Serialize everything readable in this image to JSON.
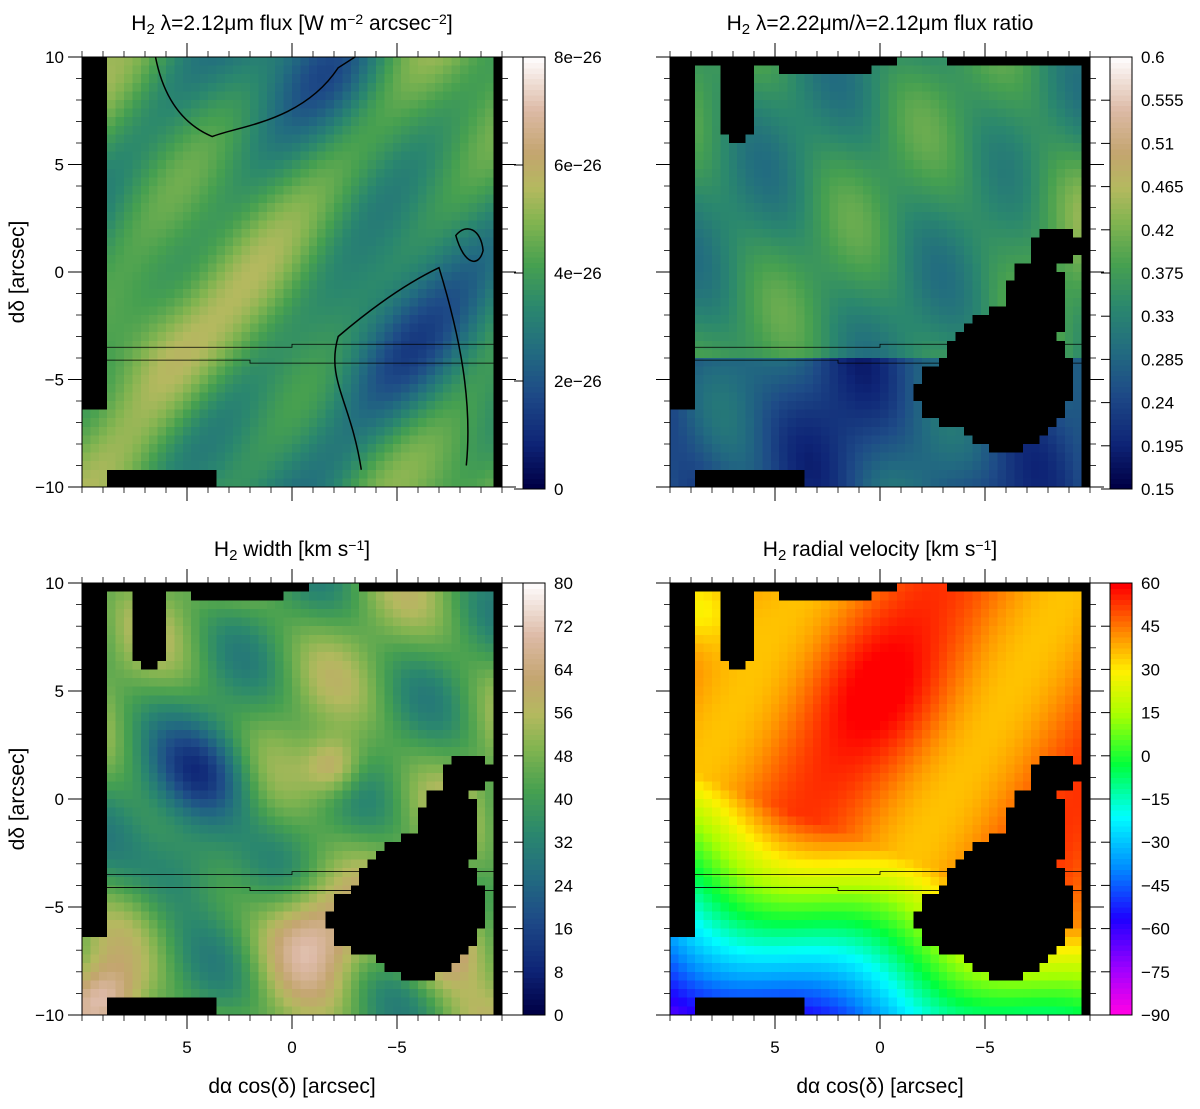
{
  "figure": {
    "xlabel_prefix": "dα cos(δ)",
    "xlabel_unit": "[arcsec]",
    "ylabel_prefix": "dδ",
    "ylabel_unit": "[arcsec]"
  },
  "chart_data": [
    {
      "type": "heatmap",
      "title_parts": [
        [
          "H",
          ""
        ],
        [
          "2",
          "sub"
        ],
        [
          " λ=2.12μm flux [W m",
          ""
        ],
        [
          "−2",
          "sup"
        ],
        [
          " arcsec",
          ""
        ],
        [
          "−2",
          "sup"
        ],
        [
          "]",
          ""
        ]
      ],
      "xlim": [
        10,
        -10
      ],
      "ylim": [
        -10,
        10
      ],
      "x_ticks": [
        5,
        0,
        -5
      ],
      "x_tick_labels": [
        "5",
        "0",
        "−5"
      ],
      "y_ticks": [
        10,
        5,
        0,
        -5,
        -10
      ],
      "y_tick_labels": [
        "10",
        "5",
        "0",
        "−5",
        "−10"
      ],
      "show_x_tick_labels": false,
      "show_y_tick_labels": true,
      "colorbar": {
        "min": 0,
        "max": 8e-26,
        "ticks": [
          0,
          2e-26,
          4e-26,
          6e-26,
          8e-26
        ],
        "tick_labels": [
          "0",
          "2e−26",
          "4e−26",
          "6e−26",
          "8e−26"
        ]
      },
      "colormap": "gist_earth_like",
      "masked_color": "#000000",
      "contours": true
    },
    {
      "type": "heatmap",
      "title_parts": [
        [
          "H",
          ""
        ],
        [
          "2",
          "sub"
        ],
        [
          " λ=2.22μm/λ=2.12μm flux ratio",
          ""
        ]
      ],
      "xlim": [
        10,
        -10
      ],
      "ylim": [
        -10,
        10
      ],
      "x_ticks": [
        5,
        0,
        -5
      ],
      "x_tick_labels": [
        "5",
        "0",
        "−5"
      ],
      "y_ticks": [
        10,
        5,
        0,
        -5,
        -10
      ],
      "y_tick_labels": [
        "10",
        "5",
        "0",
        "−5",
        "−10"
      ],
      "show_x_tick_labels": false,
      "show_y_tick_labels": false,
      "colorbar": {
        "min": 0.15,
        "max": 0.6,
        "ticks": [
          0.15,
          0.195,
          0.24,
          0.285,
          0.33,
          0.375,
          0.42,
          0.465,
          0.51,
          0.555,
          0.6
        ],
        "tick_labels": [
          "0.15",
          "0.195",
          "0.24",
          "0.285",
          "0.33",
          "0.375",
          "0.42",
          "0.465",
          "0.51",
          "0.555",
          "0.6"
        ]
      },
      "colormap": "gist_earth_like",
      "masked_color": "#000000",
      "contours": false
    },
    {
      "type": "heatmap",
      "title_parts": [
        [
          "H",
          ""
        ],
        [
          "2",
          "sub"
        ],
        [
          " width [km s",
          ""
        ],
        [
          "−1",
          "sup"
        ],
        [
          "]",
          ""
        ]
      ],
      "xlim": [
        10,
        -10
      ],
      "ylim": [
        -10,
        10
      ],
      "x_ticks": [
        5,
        0,
        -5
      ],
      "x_tick_labels": [
        "5",
        "0",
        "−5"
      ],
      "y_ticks": [
        10,
        5,
        0,
        -5,
        -10
      ],
      "y_tick_labels": [
        "10",
        "5",
        "0",
        "−5",
        "−10"
      ],
      "show_x_tick_labels": true,
      "show_y_tick_labels": true,
      "colorbar": {
        "min": 0,
        "max": 80,
        "ticks": [
          0,
          8,
          16,
          24,
          32,
          40,
          48,
          56,
          64,
          72,
          80
        ],
        "tick_labels": [
          "0",
          "8",
          "16",
          "24",
          "32",
          "40",
          "48",
          "56",
          "64",
          "72",
          "80"
        ]
      },
      "colormap": "gist_earth_like",
      "masked_color": "#000000",
      "contours": false
    },
    {
      "type": "heatmap",
      "title_parts": [
        [
          "H",
          ""
        ],
        [
          "2",
          "sub"
        ],
        [
          " radial velocity [km s",
          ""
        ],
        [
          "−1",
          "sup"
        ],
        [
          "]",
          ""
        ]
      ],
      "xlim": [
        10,
        -10
      ],
      "ylim": [
        -10,
        10
      ],
      "x_ticks": [
        5,
        0,
        -5
      ],
      "x_tick_labels": [
        "5",
        "0",
        "−5"
      ],
      "y_ticks": [
        10,
        5,
        0,
        -5,
        -10
      ],
      "y_tick_labels": [
        "10",
        "5",
        "0",
        "−5",
        "−10"
      ],
      "show_x_tick_labels": true,
      "show_y_tick_labels": false,
      "colorbar": {
        "min": -90,
        "max": 60,
        "ticks": [
          -90,
          -75,
          -60,
          -45,
          -30,
          -15,
          0,
          15,
          30,
          45,
          60
        ],
        "tick_labels": [
          "−90",
          "−75",
          "−60",
          "−45",
          "−30",
          "−15",
          "0",
          "15",
          "30",
          "45",
          "60"
        ]
      },
      "colormap": "rainbow_like",
      "masked_color": "#000000",
      "contours": false
    }
  ]
}
